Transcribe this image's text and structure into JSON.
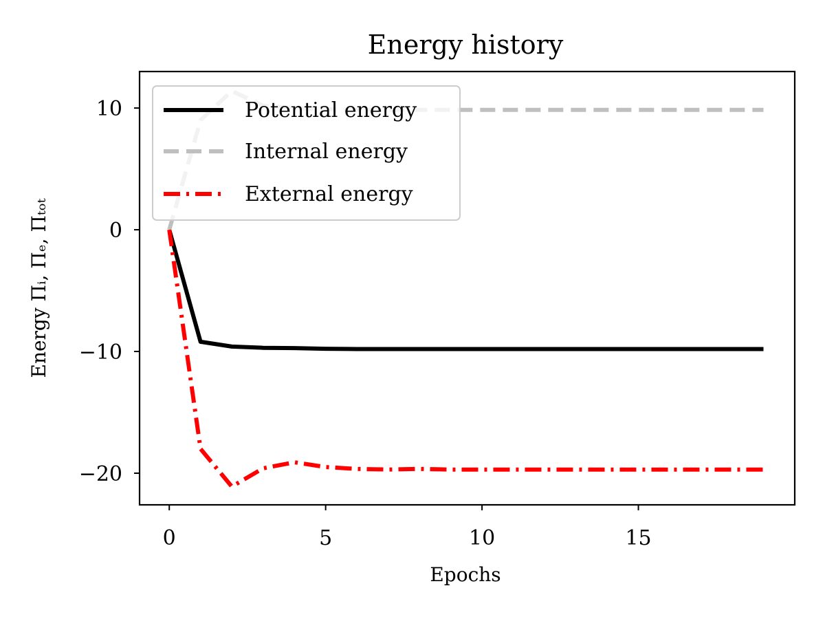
{
  "chart_data": {
    "type": "line",
    "title": "Energy history",
    "xlabel": "Epochs",
    "ylabel": "Energy Πᵢ, Πₑ, Πₜₒₜ",
    "xlim": [
      -0.95,
      20
    ],
    "ylim": [
      -22.6,
      13
    ],
    "xticks": [
      0,
      5,
      10,
      15
    ],
    "yticks": [
      -20,
      -10,
      0,
      10
    ],
    "xtick_labels": [
      "0",
      "5",
      "10",
      "15"
    ],
    "ytick_labels": [
      "−20",
      "−10",
      "0",
      "10"
    ],
    "grid": false,
    "legend_position": "top-left",
    "x": [
      0,
      1,
      2,
      3,
      4,
      5,
      6,
      7,
      8,
      9,
      10,
      11,
      12,
      13,
      14,
      15,
      16,
      17,
      18,
      19
    ],
    "series": [
      {
        "name": "Potential energy",
        "color": "#000000",
        "style": "solid",
        "values": [
          0,
          -9.2,
          -9.6,
          -9.7,
          -9.72,
          -9.78,
          -9.8,
          -9.8,
          -9.8,
          -9.8,
          -9.8,
          -9.8,
          -9.8,
          -9.8,
          -9.8,
          -9.8,
          -9.8,
          -9.8,
          -9.8,
          -9.8
        ]
      },
      {
        "name": "Internal energy",
        "color": "#bfbfbf",
        "style": "dashed",
        "values": [
          0,
          9.0,
          11.4,
          10.2,
          10.0,
          9.9,
          9.85,
          9.85,
          9.85,
          9.85,
          9.85,
          9.85,
          9.85,
          9.85,
          9.85,
          9.85,
          9.85,
          9.85,
          9.85,
          9.85
        ]
      },
      {
        "name": "External energy",
        "color": "#ff0000",
        "style": "dashdot",
        "values": [
          0,
          -18.0,
          -21.1,
          -19.6,
          -19.1,
          -19.5,
          -19.65,
          -19.7,
          -19.65,
          -19.7,
          -19.7,
          -19.7,
          -19.7,
          -19.7,
          -19.7,
          -19.7,
          -19.7,
          -19.7,
          -19.7,
          -19.7
        ]
      }
    ]
  }
}
